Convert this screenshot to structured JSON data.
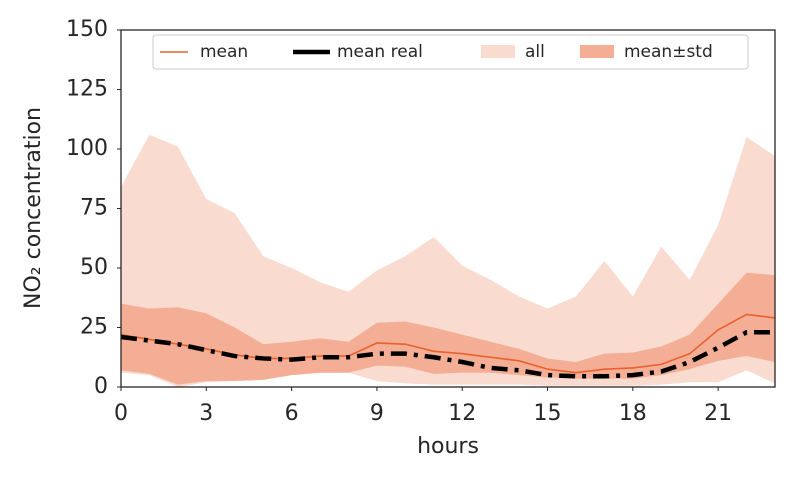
{
  "chart_data": {
    "type": "line",
    "x_label": "hours",
    "y_label": "NO₂ concentration",
    "x": [
      0,
      1,
      2,
      3,
      4,
      5,
      6,
      7,
      8,
      9,
      10,
      11,
      12,
      13,
      14,
      15,
      16,
      17,
      18,
      19,
      20,
      21,
      22,
      23
    ],
    "xlim": [
      0,
      23
    ],
    "ylim": [
      0,
      150
    ],
    "xticks": [
      0,
      3,
      6,
      9,
      12,
      15,
      18,
      21
    ],
    "yticks": [
      0,
      25,
      50,
      75,
      100,
      125,
      150
    ],
    "legend": "upper center",
    "series": [
      {
        "name": "mean",
        "color": "#e8612c",
        "style": "line",
        "values": [
          22,
          20,
          18,
          16,
          13.5,
          12,
          12,
          13,
          13,
          18.5,
          18,
          15,
          14,
          12.5,
          11,
          7.5,
          6,
          7.5,
          8,
          9.5,
          14,
          24,
          30.5,
          29
        ]
      },
      {
        "name": "mean real",
        "color": "#000000",
        "style": "dashdot",
        "values": [
          21,
          19.5,
          18,
          15.5,
          13,
          12,
          11.5,
          12.5,
          12.5,
          14,
          14,
          12.5,
          10.5,
          8,
          7,
          5,
          4.5,
          4.5,
          5,
          6.5,
          10.5,
          16.5,
          23,
          23
        ]
      },
      {
        "name": "all",
        "color": "#fadbd0",
        "style": "band",
        "upper": [
          84,
          106,
          101,
          79,
          73,
          55,
          50,
          44,
          40,
          49,
          55,
          63,
          51,
          45,
          38,
          33,
          38,
          53,
          38,
          59,
          45,
          68,
          105,
          97
        ],
        "lower": [
          6,
          5,
          0,
          2,
          2.5,
          3,
          5,
          6,
          6,
          2.5,
          1.5,
          1,
          1,
          1,
          1,
          0.5,
          0.5,
          0.5,
          0.5,
          1,
          2,
          2,
          7,
          1.5
        ]
      },
      {
        "name": "mean±std",
        "color": "#f4ae96",
        "style": "band",
        "upper": [
          35,
          33,
          33.5,
          31,
          25,
          18,
          19,
          20.5,
          19,
          27,
          27.5,
          25,
          22,
          19,
          16,
          12,
          10.5,
          14,
          14.5,
          17,
          22,
          35,
          48,
          47
        ],
        "lower": [
          7,
          5.5,
          1,
          2.5,
          2.5,
          3,
          5,
          6,
          6,
          9,
          8.5,
          5.5,
          6,
          6,
          5,
          4,
          3.5,
          3.5,
          3.5,
          5,
          7.5,
          11,
          13,
          10.5
        ]
      }
    ]
  }
}
